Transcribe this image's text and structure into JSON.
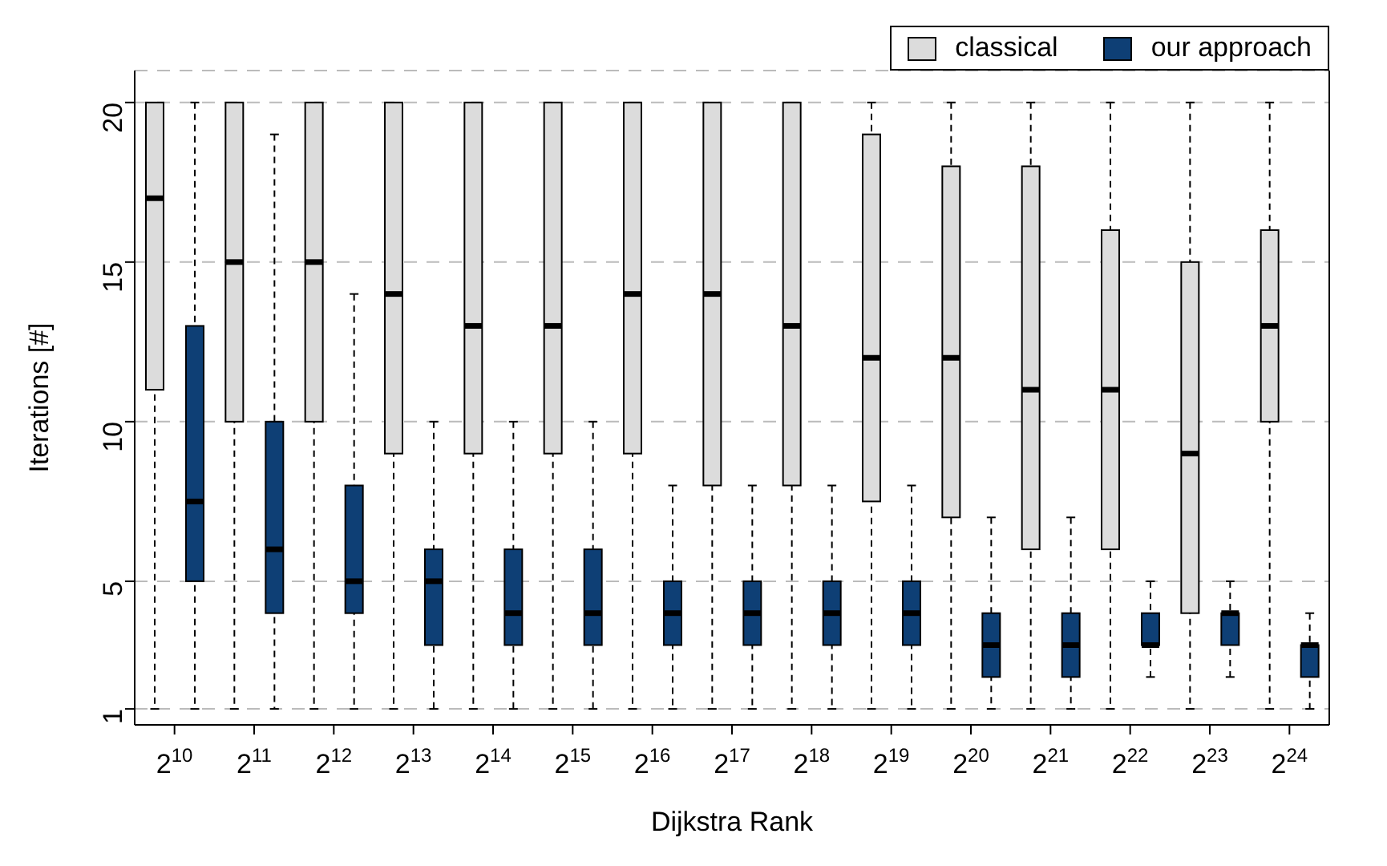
{
  "chart_data": {
    "type": "box",
    "xlabel": "Dijkstra Rank",
    "ylabel": "Iterations [#]",
    "categories": [
      "2$^{10}$",
      "2$^{11}$",
      "2$^{12}$",
      "2$^{13}$",
      "2$^{14}$",
      "2$^{15}$",
      "2$^{16}$",
      "2$^{17}$",
      "2$^{18}$",
      "2$^{19}$",
      "2$^{20}$",
      "2$^{21}$",
      "2$^{22}$",
      "2$^{23}$",
      "2$^{24}$"
    ],
    "ylim": [
      0.5,
      21
    ],
    "yticks": [
      1,
      5,
      10,
      15,
      20
    ],
    "grid": "y",
    "legend": "top right",
    "series": [
      {
        "name": "classical",
        "color": "#dcdcdc",
        "boxes": [
          {
            "low": 1,
            "q1": 11,
            "median": 17,
            "q3": 20,
            "high": 20
          },
          {
            "low": 1,
            "q1": 10,
            "median": 15,
            "q3": 20,
            "high": 20
          },
          {
            "low": 1,
            "q1": 10,
            "median": 15,
            "q3": 20,
            "high": 20
          },
          {
            "low": 1,
            "q1": 9,
            "median": 14,
            "q3": 20,
            "high": 20
          },
          {
            "low": 1,
            "q1": 9,
            "median": 13,
            "q3": 20,
            "high": 20
          },
          {
            "low": 1,
            "q1": 9,
            "median": 13,
            "q3": 20,
            "high": 20
          },
          {
            "low": 1,
            "q1": 9,
            "median": 14,
            "q3": 20,
            "high": 20
          },
          {
            "low": 1,
            "q1": 8,
            "median": 14,
            "q3": 20,
            "high": 20
          },
          {
            "low": 1,
            "q1": 8,
            "median": 13,
            "q3": 20,
            "high": 20
          },
          {
            "low": 1,
            "q1": 7.5,
            "median": 12,
            "q3": 19,
            "high": 20
          },
          {
            "low": 1,
            "q1": 7,
            "median": 12,
            "q3": 18,
            "high": 20
          },
          {
            "low": 1,
            "q1": 6,
            "median": 11,
            "q3": 18,
            "high": 20
          },
          {
            "low": 1,
            "q1": 6,
            "median": 11,
            "q3": 16,
            "high": 20
          },
          {
            "low": 1,
            "q1": 4,
            "median": 9,
            "q3": 15,
            "high": 20
          },
          {
            "low": 1,
            "q1": 10,
            "median": 13,
            "q3": 16,
            "high": 20
          }
        ]
      },
      {
        "name": "our approach",
        "color": "#0e3f75",
        "boxes": [
          {
            "low": 1,
            "q1": 5,
            "median": 7.5,
            "q3": 13,
            "high": 20
          },
          {
            "low": 1,
            "q1": 4,
            "median": 6,
            "q3": 10,
            "high": 19
          },
          {
            "low": 1,
            "q1": 4,
            "median": 5,
            "q3": 8,
            "high": 14
          },
          {
            "low": 1,
            "q1": 3,
            "median": 5,
            "q3": 6,
            "high": 10
          },
          {
            "low": 1,
            "q1": 3,
            "median": 4,
            "q3": 6,
            "high": 10
          },
          {
            "low": 1,
            "q1": 3,
            "median": 4,
            "q3": 6,
            "high": 10
          },
          {
            "low": 1,
            "q1": 3,
            "median": 4,
            "q3": 5,
            "high": 8
          },
          {
            "low": 1,
            "q1": 3,
            "median": 4,
            "q3": 5,
            "high": 8
          },
          {
            "low": 1,
            "q1": 3,
            "median": 4,
            "q3": 5,
            "high": 8
          },
          {
            "low": 1,
            "q1": 3,
            "median": 4,
            "q3": 5,
            "high": 8
          },
          {
            "low": 1,
            "q1": 2,
            "median": 3,
            "q3": 4,
            "high": 7
          },
          {
            "low": 1,
            "q1": 2,
            "median": 3,
            "q3": 4,
            "high": 7
          },
          {
            "low": 2,
            "q1": 3,
            "median": 3,
            "q3": 4,
            "high": 5
          },
          {
            "low": 2,
            "q1": 3,
            "median": 4,
            "q3": 4,
            "high": 5
          },
          {
            "low": 1,
            "q1": 2,
            "median": 3,
            "q3": 3,
            "high": 4
          }
        ]
      }
    ]
  }
}
